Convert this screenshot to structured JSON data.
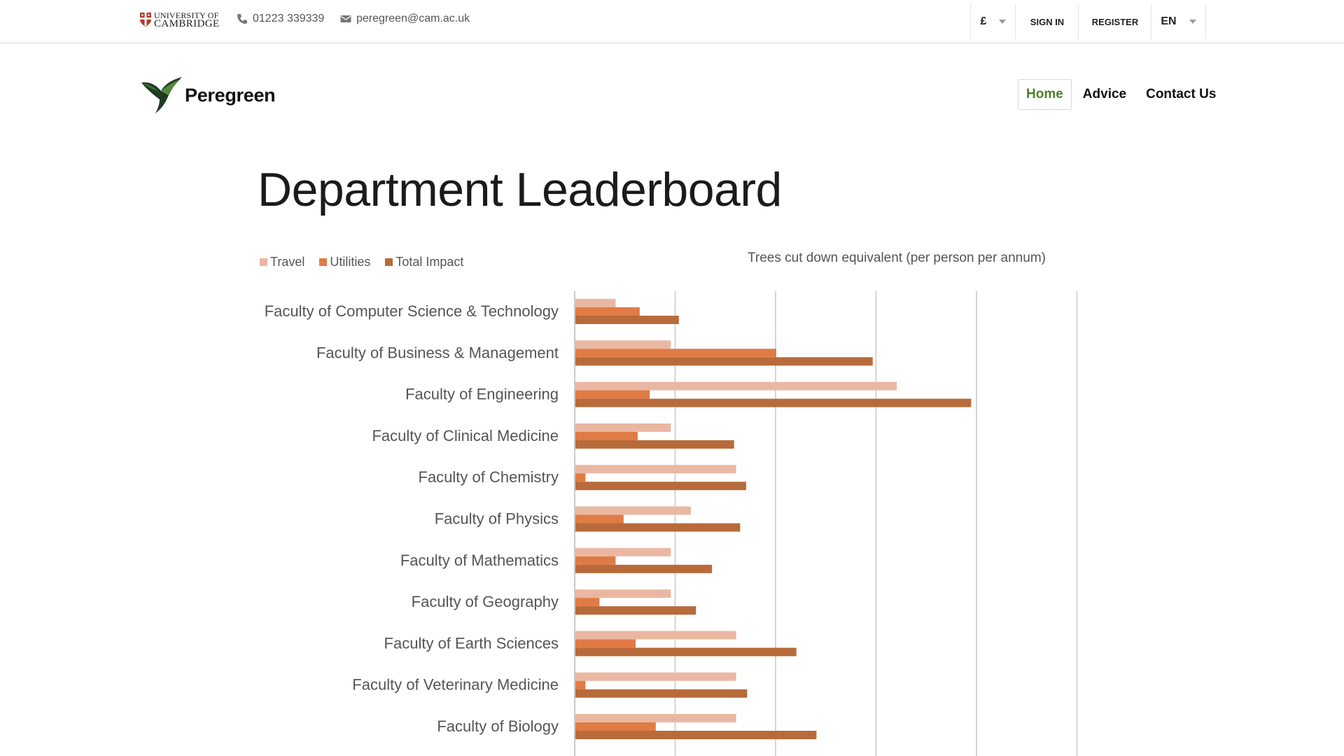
{
  "topbar": {
    "university_line1": "UNIVERSITY OF",
    "university_line2": "CAMBRIDGE",
    "phone": "01223 339339",
    "email": "peregreen@cam.ac.uk",
    "currency": "£",
    "sign_in": "SIGN IN",
    "register": "REGISTER",
    "language": "EN"
  },
  "header": {
    "brand": "Peregreen",
    "nav": [
      {
        "label": "Home",
        "active": true
      },
      {
        "label": "Advice",
        "active": false
      },
      {
        "label": "Contact Us",
        "active": false
      }
    ]
  },
  "page": {
    "title": "Department Leaderboard"
  },
  "colors": {
    "travel": "#eab8a2",
    "utilities": "#e07b45",
    "total": "#b86a3a",
    "accent_green": "#4f7f2b"
  },
  "chart_data": {
    "type": "bar",
    "orientation": "horizontal",
    "title": "",
    "xlabel": "Trees cut down equivalent (per person per annum)",
    "ylabel": "",
    "legend_position": "top-left",
    "grid": true,
    "xlim": [
      0,
      5
    ],
    "categories": [
      "Faculty of Computer Science & Technology",
      "Faculty of Business & Management",
      "Faculty of Engineering",
      "Faculty of Clinical Medicine",
      "Faculty of Chemistry",
      "Faculty of Physics",
      "Faculty of Mathematics",
      "Faculty of Geography",
      "Faculty of Earth Sciences",
      "Faculty of Veterinary Medicine",
      "Faculty of Biology"
    ],
    "series": [
      {
        "name": "Travel",
        "values": [
          0.4,
          0.95,
          3.2,
          0.95,
          1.6,
          1.15,
          0.95,
          0.95,
          1.6,
          1.6,
          1.6
        ]
      },
      {
        "name": "Utilities",
        "values": [
          0.64,
          2.0,
          0.74,
          0.62,
          0.1,
          0.48,
          0.4,
          0.24,
          0.6,
          0.1,
          0.8
        ]
      },
      {
        "name": "Total Impact",
        "values": [
          1.03,
          2.96,
          3.94,
          1.58,
          1.7,
          1.64,
          1.36,
          1.2,
          2.2,
          1.71,
          2.4
        ]
      }
    ]
  }
}
